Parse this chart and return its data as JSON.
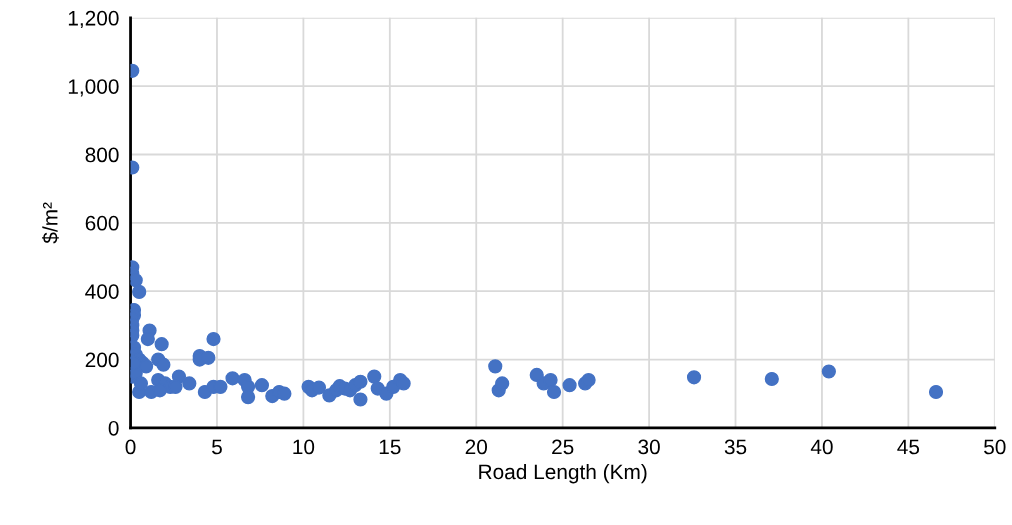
{
  "chart_data": {
    "type": "scatter",
    "xlabel": "Road Length (Km)",
    "ylabel": "$/m²",
    "xlim": [
      0,
      50
    ],
    "xticks": [
      0,
      5,
      10,
      15,
      20,
      25,
      30,
      35,
      40,
      45,
      50
    ],
    "ylim": [
      0,
      1200
    ],
    "yticks": [
      0,
      200,
      400,
      600,
      800,
      {
        "value": 1000,
        "label": "1,000"
      },
      {
        "value": 1200,
        "label": "1,200"
      }
    ],
    "grid": true,
    "marker": "circle",
    "series": [
      {
        "color": "#4472c4",
        "x": [
          0.1,
          0.1,
          0.1,
          0.1,
          0.3,
          0.5,
          0.2,
          0.2,
          0.1,
          0.1,
          0.1,
          0.1,
          0.2,
          0.1,
          0.3,
          0.5,
          0.7,
          0.9,
          1.1,
          1.0,
          1.8,
          4.8,
          1.6,
          1.9,
          0.5,
          1.2,
          1.6,
          2.0,
          2.3,
          2.8,
          2.6,
          3.4,
          4.0,
          4.0,
          4.5,
          4.3,
          4.8,
          5.2,
          5.9,
          6.6,
          6.8,
          6.8,
          7.6,
          8.2,
          8.6,
          8.9,
          10.3,
          10.5,
          10.9,
          11.5,
          11.9,
          12.1,
          12.4,
          12.7,
          13.0,
          13.3,
          13.3,
          14.1,
          14.3,
          14.8,
          15.2,
          15.6,
          15.8,
          21.1,
          21.3,
          21.5,
          23.5,
          23.9,
          24.3,
          24.5,
          25.4,
          26.3,
          26.5,
          32.6,
          37.1,
          40.4,
          46.6,
          0.3,
          0.6,
          1.7,
          0.2
        ],
        "values": [
          1045,
          762,
          470,
          452,
          432,
          398,
          345,
          330,
          318,
          300,
          285,
          270,
          235,
          150,
          215,
          200,
          190,
          180,
          285,
          260,
          245,
          260,
          200,
          185,
          105,
          105,
          140,
          130,
          120,
          150,
          120,
          130,
          210,
          200,
          205,
          105,
          120,
          120,
          145,
          140,
          120,
          90,
          125,
          93,
          105,
          100,
          120,
          110,
          118,
          95,
          110,
          122,
          115,
          110,
          125,
          135,
          83,
          150,
          115,
          100,
          120,
          140,
          130,
          180,
          110,
          130,
          155,
          130,
          140,
          105,
          125,
          130,
          140,
          148,
          143,
          165,
          105,
          160,
          130,
          110,
          190
        ]
      }
    ]
  }
}
